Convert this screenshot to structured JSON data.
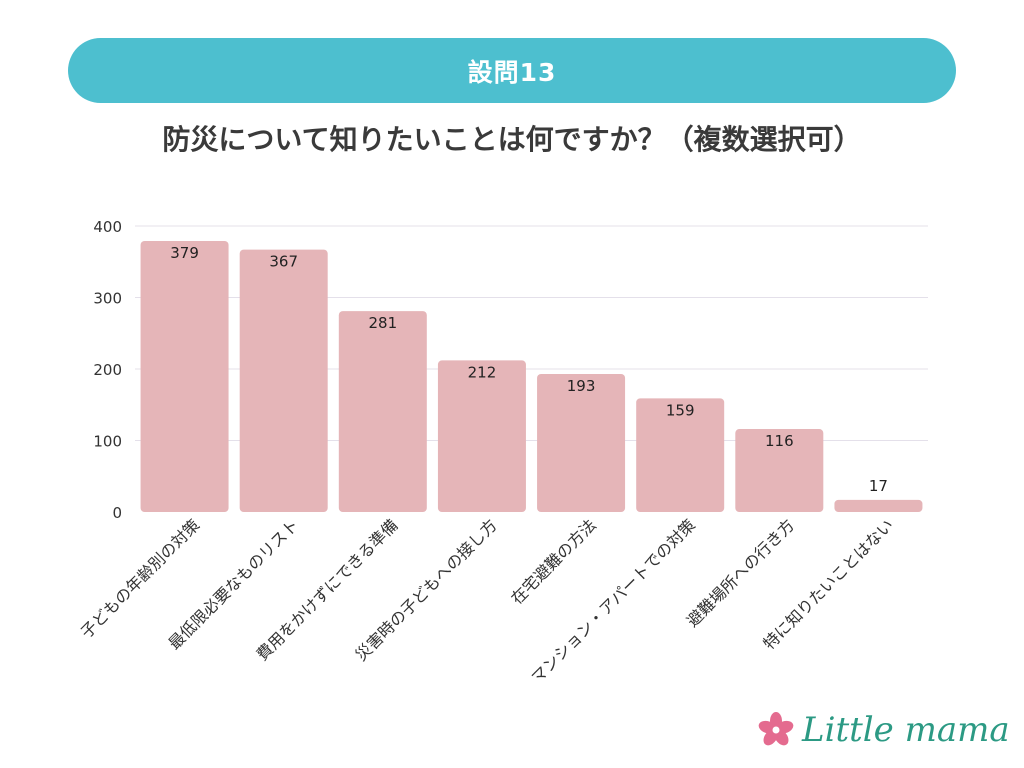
{
  "header": {
    "banner": "設問13",
    "question": "防災について知りたいことは何ですか？（複数選択可）"
  },
  "brand": {
    "name": "Little mama",
    "logo_color": "#2c9a84",
    "flower_color": "#e46b8f"
  },
  "colors": {
    "banner": "#4dbfcf",
    "bar": "#e5b5b8",
    "grid": "#e4e0ea"
  },
  "chart_data": {
    "type": "bar",
    "title": "防災について知りたいことは何ですか？（複数選択可）",
    "categories": [
      "子どもの年齢別の対策",
      "最低限必要なものリスト",
      "費用をかけずにできる準備",
      "災害時の子どもへの接し方",
      "在宅避難の方法",
      "マンション・アパートでの対策",
      "避難場所への行き方",
      "特に知りたいことはない"
    ],
    "values": [
      379,
      367,
      281,
      212,
      193,
      159,
      116,
      17
    ],
    "yticks": [
      0,
      100,
      200,
      300,
      400
    ],
    "ylim": [
      0,
      400
    ],
    "grid": true,
    "xlabel": "",
    "ylabel": ""
  }
}
